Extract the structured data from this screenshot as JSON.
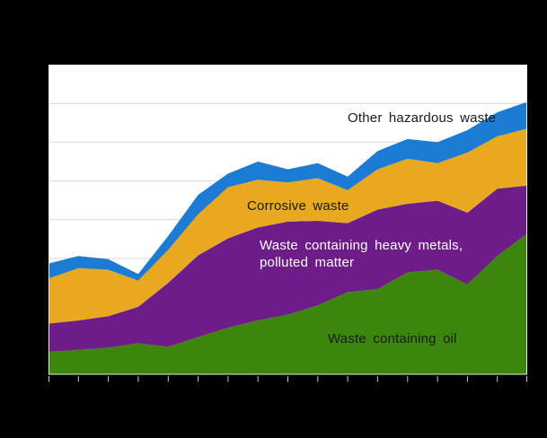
{
  "figure": {
    "title": "",
    "labels": {
      "other_hazardous": "Other hazardous waste",
      "corrosive": "Corrosive waste",
      "heavy_metals_line1": "Waste containing heavy metals,",
      "heavy_metals_line2": "polluted matter",
      "oil": "Waste containing oil"
    }
  },
  "colors": {
    "background": "#000000",
    "plot_bg": "#ffffff",
    "gridline": "#d9d9d9",
    "plot_border": "#ebebeb",
    "tick": "#cccccc",
    "label_dark": "#1a1a1a",
    "label_light": "#ffffff",
    "oil_green": "#3c860d",
    "metals_purple": "#6e1c87",
    "corrosive_gold": "#e8a820",
    "other_blue": "#1c7bd3"
  },
  "chart_data": {
    "type": "area",
    "stacked": true,
    "title": "",
    "xlabel": "",
    "ylabel": "",
    "x": {
      "tick_count": 17,
      "tick_labels": [],
      "labels_visible": false
    },
    "y": {
      "gridline_divisions": 8,
      "ylim": [
        0,
        8
      ],
      "tick_labels_visible": false,
      "grid": true
    },
    "legend_position": "inline-area-labels",
    "values_unit": "gridline-divisions (axis numbers not visible in image)",
    "series": [
      {
        "id": "waste-containing-oil",
        "name": "Waste containing oil",
        "color": "#3c860d",
        "values": [
          0.59,
          0.64,
          0.7,
          0.81,
          0.72,
          0.97,
          1.21,
          1.4,
          1.55,
          1.79,
          2.13,
          2.21,
          2.64,
          2.71,
          2.33,
          3.06,
          3.64
        ]
      },
      {
        "id": "waste-containing-heavy-metals-polluted-matter",
        "name": "Waste containing heavy metals, polluted matter",
        "color": "#6e1c87",
        "values": [
          0.73,
          0.76,
          0.81,
          0.94,
          1.65,
          2.11,
          2.31,
          2.4,
          2.4,
          2.18,
          1.78,
          2.05,
          1.77,
          1.78,
          1.85,
          1.74,
          1.24
        ]
      },
      {
        "id": "corrosive-waste",
        "name": "Corrosive waste",
        "color": "#e8a820",
        "values": [
          1.16,
          1.35,
          1.2,
          0.68,
          0.85,
          1.06,
          1.32,
          1.23,
          1.01,
          1.1,
          0.85,
          1.04,
          1.16,
          0.97,
          1.55,
          1.35,
          1.47
        ]
      },
      {
        "id": "other-hazardous-waste",
        "name": "Other hazardous waste",
        "color": "#1c7bd3",
        "values": [
          0.39,
          0.31,
          0.27,
          0.17,
          0.36,
          0.5,
          0.35,
          0.47,
          0.34,
          0.39,
          0.35,
          0.47,
          0.51,
          0.54,
          0.58,
          0.62,
          0.69
        ]
      }
    ]
  }
}
